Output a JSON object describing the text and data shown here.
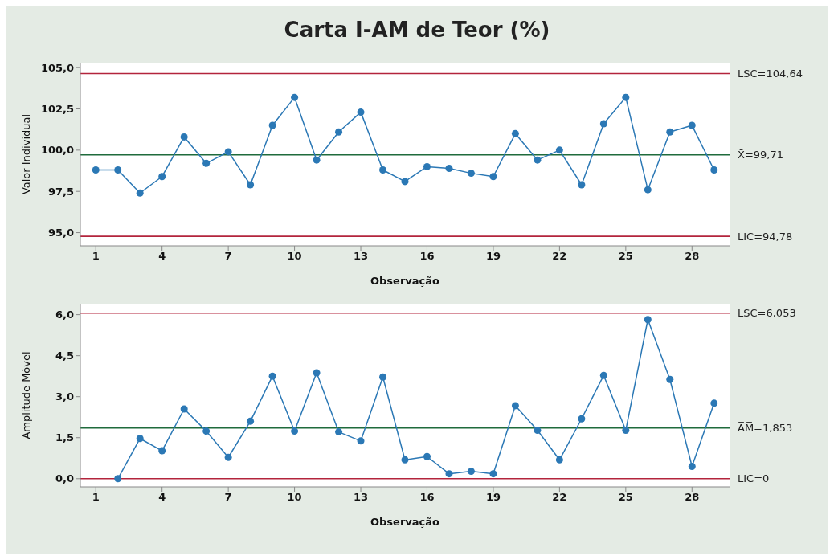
{
  "chart_data": [
    {
      "type": "line",
      "title": "Carta I-AM de Teor (%)",
      "xlabel": "Observação",
      "ylabel": "Valor Individual",
      "x": [
        1,
        2,
        3,
        4,
        5,
        6,
        7,
        8,
        9,
        10,
        11,
        12,
        13,
        14,
        15,
        16,
        17,
        18,
        19,
        20,
        21,
        22,
        23,
        24,
        25,
        26,
        27,
        28,
        29
      ],
      "values": [
        98.8,
        98.8,
        97.4,
        98.4,
        100.8,
        99.2,
        99.9,
        97.9,
        101.5,
        103.2,
        99.4,
        101.1,
        102.3,
        98.8,
        98.1,
        99.0,
        98.9,
        98.6,
        98.4,
        101.0,
        99.4,
        100.0,
        97.9,
        101.6,
        103.2,
        97.6,
        101.1,
        101.5,
        98.8
      ],
      "color": "#2b78b5",
      "marker": "circle",
      "line_style": "solid",
      "xlim": [
        0.3,
        29.7
      ],
      "xticks": [
        1,
        4,
        7,
        10,
        13,
        16,
        19,
        22,
        25,
        28
      ],
      "ylim": [
        94.2,
        105.3
      ],
      "yticks": [
        {
          "value": 95,
          "label": "95,0"
        },
        {
          "value": 97.5,
          "label": "97,5"
        },
        {
          "value": 100,
          "label": "100,0"
        },
        {
          "value": 102.5,
          "label": "102,5"
        },
        {
          "value": 105,
          "label": "105,0"
        }
      ],
      "ref_lines": [
        {
          "axis": "y",
          "value": 104.64,
          "label": "LSC=104,64",
          "color": "#b3243c"
        },
        {
          "axis": "y",
          "value": 99.71,
          "label": "X̄=99,71",
          "color": "#1f6b3c"
        },
        {
          "axis": "y",
          "value": 94.78,
          "label": "LIC=94,78",
          "color": "#b3243c"
        }
      ]
    },
    {
      "type": "line",
      "xlabel": "Observação",
      "ylabel": "Amplitude Móvel",
      "x": [
        2,
        3,
        4,
        5,
        6,
        7,
        8,
        9,
        10,
        11,
        12,
        13,
        14,
        15,
        16,
        17,
        18,
        19,
        20,
        21,
        22,
        23,
        24,
        25,
        26,
        27,
        28,
        29
      ],
      "values": [
        0.0,
        1.47,
        1.02,
        2.55,
        1.74,
        0.78,
        2.1,
        3.75,
        1.74,
        3.87,
        1.71,
        1.38,
        3.72,
        0.69,
        0.81,
        0.18,
        0.27,
        0.18,
        2.67,
        1.77,
        0.69,
        2.19,
        3.78,
        1.77,
        5.82,
        3.63,
        0.45,
        2.76
      ],
      "color": "#2b78b5",
      "marker": "circle",
      "line_style": "solid",
      "xlim": [
        0.3,
        29.7
      ],
      "xticks": [
        1,
        4,
        7,
        10,
        13,
        16,
        19,
        22,
        25,
        28
      ],
      "ylim": [
        -0.3,
        6.4
      ],
      "yticks": [
        {
          "value": 0,
          "label": "0,0"
        },
        {
          "value": 1.5,
          "label": "1,5"
        },
        {
          "value": 3,
          "label": "3,0"
        },
        {
          "value": 4.5,
          "label": "4,5"
        },
        {
          "value": 6,
          "label": "6,0"
        }
      ],
      "ref_lines": [
        {
          "axis": "y",
          "value": 6.053,
          "label": "LSC=6,053",
          "color": "#b3243c"
        },
        {
          "axis": "y",
          "value": 1.853,
          "label": "A̅M̅=1,853",
          "color": "#1f6b3c"
        },
        {
          "axis": "y",
          "value": 0,
          "label": "LIC=0",
          "color": "#b3243c"
        }
      ]
    }
  ]
}
